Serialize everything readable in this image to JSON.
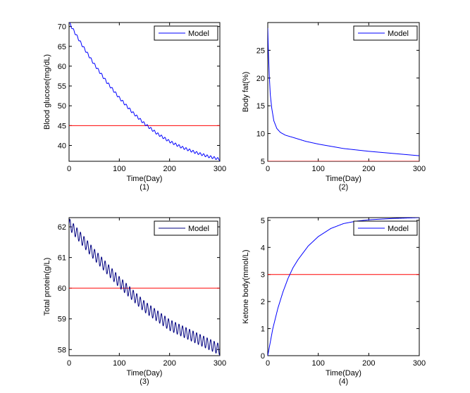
{
  "chart_data": [
    {
      "type": "line",
      "panel_label": "(1)",
      "xlabel": "Time(Day)",
      "ylabel": "Blood glucose(mg/dL)",
      "xlim": [
        0,
        300
      ],
      "ylim": [
        36,
        71
      ],
      "xticks": [
        0,
        100,
        200,
        300
      ],
      "yticks": [
        40,
        45,
        50,
        55,
        60,
        65,
        70
      ],
      "legend": {
        "position": "top-right",
        "entries": [
          "Model"
        ]
      },
      "series": [
        {
          "name": "Model",
          "color": "#0000ff",
          "x": [
            0,
            25,
            50,
            75,
            100,
            125,
            150,
            175,
            200,
            225,
            250,
            275,
            300
          ],
          "y": [
            71,
            65.5,
            60.5,
            56,
            52,
            48.5,
            45.5,
            43,
            41,
            39.5,
            38.3,
            37.3,
            36.5
          ],
          "oscillation": 0.3,
          "period_days": 7
        }
      ],
      "reference_line": {
        "y": 45,
        "color": "#ff0000"
      }
    },
    {
      "type": "line",
      "panel_label": "(2)",
      "xlabel": "Time(Day)",
      "ylabel": "Body fat(%)",
      "xlim": [
        0,
        300
      ],
      "ylim": [
        5,
        30
      ],
      "xticks": [
        0,
        100,
        200,
        300
      ],
      "yticks": [
        5,
        10,
        15,
        20,
        25
      ],
      "legend": {
        "position": "top-right",
        "entries": [
          "Model"
        ]
      },
      "series": [
        {
          "name": "Model",
          "color": "#0000ff",
          "x": [
            0,
            1,
            2,
            3,
            5,
            8,
            12,
            18,
            25,
            35,
            50,
            75,
            100,
            150,
            200,
            250,
            300
          ],
          "y": [
            29,
            25.5,
            23,
            20.5,
            17,
            14.5,
            12.3,
            10.9,
            10.2,
            9.7,
            9.3,
            8.6,
            8.1,
            7.3,
            6.8,
            6.4,
            6.0
          ],
          "oscillation": 0,
          "period_days": 7
        }
      ],
      "reference_line": {
        "y": 5,
        "color": "#ff0000"
      }
    },
    {
      "type": "line",
      "panel_label": "(3)",
      "xlabel": "Time(Day)",
      "ylabel": "Total protein(g/L)",
      "xlim": [
        0,
        300
      ],
      "ylim": [
        57.8,
        62.3
      ],
      "xticks": [
        0,
        100,
        200,
        300
      ],
      "yticks": [
        58,
        59,
        60,
        61,
        62
      ],
      "legend": {
        "position": "top-right",
        "entries": [
          "Model"
        ]
      },
      "series": [
        {
          "name": "Model",
          "color": "#000080",
          "x": [
            0,
            50,
            100,
            150,
            200,
            250,
            300
          ],
          "y": [
            62.1,
            61.1,
            60.2,
            59.4,
            58.8,
            58.4,
            58.0
          ],
          "oscillation": 0.18,
          "period_days": 7
        }
      ],
      "reference_line": {
        "y": 60,
        "color": "#ff0000"
      }
    },
    {
      "type": "line",
      "panel_label": "(4)",
      "xlabel": "Time(Day)",
      "ylabel": "Ketone body(mmol/L)",
      "xlim": [
        0,
        300
      ],
      "ylim": [
        0,
        5.1
      ],
      "xticks": [
        0,
        100,
        200,
        300
      ],
      "yticks": [
        0,
        1,
        2,
        3,
        4,
        5
      ],
      "legend": {
        "position": "top-right",
        "entries": [
          "Model"
        ]
      },
      "series": [
        {
          "name": "Model",
          "color": "#0000ff",
          "x": [
            0,
            10,
            20,
            30,
            40,
            50,
            60,
            80,
            100,
            125,
            150,
            175,
            200,
            250,
            300
          ],
          "y": [
            0,
            1.0,
            1.75,
            2.35,
            2.85,
            3.25,
            3.55,
            4.05,
            4.4,
            4.7,
            4.88,
            4.97,
            5.02,
            5.07,
            5.1
          ],
          "oscillation": 0,
          "period_days": 7
        }
      ],
      "reference_line": {
        "y": 3,
        "color": "#ff0000"
      }
    }
  ]
}
